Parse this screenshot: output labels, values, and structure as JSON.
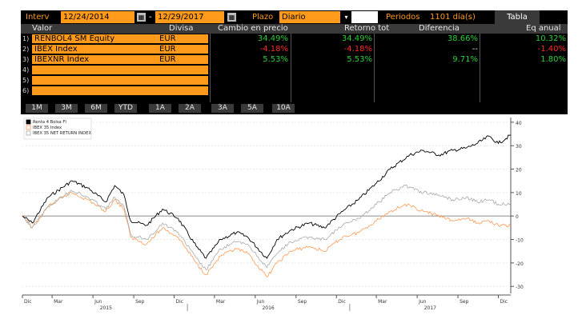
{
  "toolbar": {
    "interval_label": "Interv",
    "start_date": "12/24/2014",
    "date_separator": "-",
    "end_date": "12/29/2017",
    "plazo_label": "Plazo",
    "plazo_value": "Diario",
    "periods_label": "Periodos",
    "periods_value": "1101 día(s)",
    "table_button": "Tabla"
  },
  "table": {
    "headers": [
      "Valor",
      "Divisa",
      "Cambio en precio",
      "Retorno tot",
      "Diferencia",
      "Eq anual"
    ],
    "rows": [
      {
        "num": "1)",
        "valor": "RENBOL4 SM Equity",
        "divisa": "EUR",
        "cambio": "34.49%",
        "retorno": "34.49%",
        "diferencia": "38.66%",
        "eq": "10.32%"
      },
      {
        "num": "2)",
        "valor": "IBEX Index",
        "divisa": "EUR",
        "cambio": "-4.18%",
        "retorno": "-4.18%",
        "diferencia": "--",
        "eq": "-1.40%"
      },
      {
        "num": "3)",
        "valor": "IBEXNR Index",
        "divisa": "EUR",
        "cambio": "5.53%",
        "retorno": "5.53%",
        "diferencia": "9.71%",
        "eq": "1.80%"
      },
      {
        "num": "4)",
        "valor": "",
        "divisa": "",
        "cambio": "",
        "retorno": "",
        "diferencia": "",
        "eq": ""
      },
      {
        "num": "5)",
        "valor": "",
        "divisa": "",
        "cambio": "",
        "retorno": "",
        "diferencia": "",
        "eq": ""
      },
      {
        "num": "6)",
        "valor": "",
        "divisa": "",
        "cambio": "",
        "retorno": "",
        "diferencia": "",
        "eq": ""
      }
    ]
  },
  "periods": [
    "1M",
    "3M",
    "6M",
    "YTD",
    "1A",
    "2A",
    "3A",
    "5A",
    "10A"
  ],
  "colors": {
    "orange": "#ff9a1a",
    "positive": "#2bd136",
    "negative": "#ff2a2a",
    "series_renta4": "#000000",
    "series_ibex": "#ff9a55",
    "series_ibexnr": "#a8a8a8"
  },
  "chart_data": {
    "type": "line",
    "legend": [
      "Renta 4 Bolsa FI",
      "IBEX 35 Index",
      "IBEX 35 NET RETURN INDEX"
    ],
    "legend_position": "top-left",
    "ylim": [
      -33,
      42
    ],
    "yticks": [
      "40",
      "30",
      "20",
      "10",
      "0",
      "-10",
      "-20",
      "-30"
    ],
    "months": [
      "Dic",
      "Mar",
      "Jun",
      "Sep",
      "Dic",
      "Mar",
      "Jun",
      "Sep",
      "Dic",
      "Mar",
      "Jun",
      "Sep",
      "Dic"
    ],
    "years": [
      "2015",
      "2016",
      "2017"
    ],
    "x_range": [
      "2014-12-24",
      "2017-12-29"
    ],
    "series": [
      {
        "name": "Renta 4 Bolsa FI",
        "points": [
          [
            "2014-12-24",
            0
          ],
          [
            "2015-01-15",
            -3
          ],
          [
            "2015-02-20",
            8
          ],
          [
            "2015-04-15",
            15
          ],
          [
            "2015-05-20",
            12
          ],
          [
            "2015-06-30",
            6
          ],
          [
            "2015-07-20",
            13
          ],
          [
            "2015-08-10",
            9
          ],
          [
            "2015-08-25",
            -2
          ],
          [
            "2015-09-30",
            -4
          ],
          [
            "2015-11-05",
            3
          ],
          [
            "2015-12-10",
            -1
          ],
          [
            "2016-01-20",
            -13
          ],
          [
            "2016-02-11",
            -18
          ],
          [
            "2016-03-15",
            -10
          ],
          [
            "2016-04-20",
            -7
          ],
          [
            "2016-05-15",
            -9
          ],
          [
            "2016-06-27",
            -18
          ],
          [
            "2016-07-20",
            -10
          ],
          [
            "2016-08-20",
            -6
          ],
          [
            "2016-09-30",
            -3
          ],
          [
            "2016-11-04",
            -5
          ],
          [
            "2016-12-15",
            2
          ],
          [
            "2017-01-20",
            7
          ],
          [
            "2017-03-01",
            14
          ],
          [
            "2017-04-01",
            20
          ],
          [
            "2017-05-15",
            26
          ],
          [
            "2017-06-15",
            28
          ],
          [
            "2017-07-20",
            26
          ],
          [
            "2017-08-20",
            28
          ],
          [
            "2017-09-20",
            29
          ],
          [
            "2017-10-15",
            31
          ],
          [
            "2017-11-10",
            34
          ],
          [
            "2017-12-01",
            31
          ],
          [
            "2017-12-29",
            34.5
          ]
        ]
      },
      {
        "name": "IBEX 35 Index",
        "points": [
          [
            "2014-12-24",
            0
          ],
          [
            "2015-01-15",
            -5
          ],
          [
            "2015-02-20",
            4
          ],
          [
            "2015-04-13",
            10
          ],
          [
            "2015-05-20",
            7
          ],
          [
            "2015-06-30",
            2
          ],
          [
            "2015-07-20",
            7
          ],
          [
            "2015-08-10",
            3
          ],
          [
            "2015-08-25",
            -9
          ],
          [
            "2015-09-30",
            -12
          ],
          [
            "2015-11-05",
            -5
          ],
          [
            "2015-12-10",
            -9
          ],
          [
            "2016-01-20",
            -20
          ],
          [
            "2016-02-11",
            -25
          ],
          [
            "2016-03-15",
            -17
          ],
          [
            "2016-04-20",
            -14
          ],
          [
            "2016-05-15",
            -16
          ],
          [
            "2016-06-27",
            -26
          ],
          [
            "2016-07-20",
            -20
          ],
          [
            "2016-08-20",
            -15
          ],
          [
            "2016-09-30",
            -13
          ],
          [
            "2016-11-04",
            -15
          ],
          [
            "2016-12-15",
            -9
          ],
          [
            "2017-01-20",
            -7
          ],
          [
            "2017-03-01",
            -2
          ],
          [
            "2017-04-01",
            2
          ],
          [
            "2017-05-05",
            5
          ],
          [
            "2017-06-15",
            2
          ],
          [
            "2017-07-20",
            0
          ],
          [
            "2017-08-20",
            -2
          ],
          [
            "2017-09-20",
            -1
          ],
          [
            "2017-10-15",
            -3
          ],
          [
            "2017-11-10",
            -2
          ],
          [
            "2017-12-01",
            -4
          ],
          [
            "2017-12-29",
            -4.2
          ]
        ]
      },
      {
        "name": "IBEX 35 NET RETURN INDEX",
        "points": [
          [
            "2014-12-24",
            0
          ],
          [
            "2015-01-15",
            -5
          ],
          [
            "2015-02-20",
            4
          ],
          [
            "2015-04-13",
            11
          ],
          [
            "2015-05-20",
            8
          ],
          [
            "2015-06-30",
            3
          ],
          [
            "2015-07-20",
            8
          ],
          [
            "2015-08-10",
            4
          ],
          [
            "2015-08-25",
            -8
          ],
          [
            "2015-09-30",
            -10
          ],
          [
            "2015-11-05",
            -3
          ],
          [
            "2015-12-10",
            -7
          ],
          [
            "2016-01-20",
            -18
          ],
          [
            "2016-02-11",
            -23
          ],
          [
            "2016-03-15",
            -14
          ],
          [
            "2016-04-20",
            -11
          ],
          [
            "2016-05-15",
            -12
          ],
          [
            "2016-06-27",
            -22
          ],
          [
            "2016-07-20",
            -16
          ],
          [
            "2016-08-20",
            -11
          ],
          [
            "2016-09-30",
            -9
          ],
          [
            "2016-11-04",
            -10
          ],
          [
            "2016-12-15",
            -4
          ],
          [
            "2017-01-20",
            -1
          ],
          [
            "2017-03-01",
            5
          ],
          [
            "2017-04-01",
            10
          ],
          [
            "2017-05-05",
            13
          ],
          [
            "2017-06-15",
            10
          ],
          [
            "2017-07-20",
            9
          ],
          [
            "2017-08-20",
            7
          ],
          [
            "2017-09-20",
            8
          ],
          [
            "2017-10-15",
            6
          ],
          [
            "2017-11-10",
            7
          ],
          [
            "2017-12-01",
            5
          ],
          [
            "2017-12-29",
            5.5
          ]
        ]
      }
    ]
  }
}
